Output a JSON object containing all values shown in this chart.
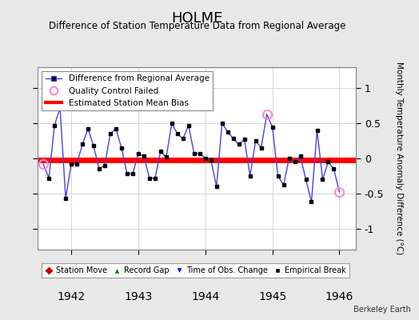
{
  "title": "HOLME",
  "subtitle": "Difference of Station Temperature Data from Regional Average",
  "ylabel": "Monthly Temperature Anomaly Difference (°C)",
  "xlim": [
    1941.5,
    1946.25
  ],
  "ylim": [
    -1.3,
    1.3
  ],
  "yticks": [
    -1,
    -0.5,
    0,
    0.5,
    1
  ],
  "background_color": "#e8e8e8",
  "plot_bg_color": "#ffffff",
  "grid_color": "#d0d0d0",
  "bias_line_y": -0.02,
  "line_color": "#4444dd",
  "line_width": 1.0,
  "marker_color": "#000000",
  "marker_size": 3.5,
  "qc_fail_color": "#ff88cc",
  "bias_color": "#ff0000",
  "bias_lw": 5,
  "watermark": "Berkeley Earth",
  "x_values": [
    1941.583,
    1941.667,
    1941.75,
    1941.833,
    1941.917,
    1942.0,
    1942.083,
    1942.167,
    1942.25,
    1942.333,
    1942.417,
    1942.5,
    1942.583,
    1942.667,
    1942.75,
    1942.833,
    1942.917,
    1943.0,
    1943.083,
    1943.167,
    1943.25,
    1943.333,
    1943.417,
    1943.5,
    1943.583,
    1943.667,
    1943.75,
    1943.833,
    1943.917,
    1944.0,
    1944.083,
    1944.167,
    1944.25,
    1944.333,
    1944.417,
    1944.5,
    1944.583,
    1944.667,
    1944.75,
    1944.833,
    1944.917,
    1945.0,
    1945.083,
    1945.167,
    1945.25,
    1945.333,
    1945.417,
    1945.5,
    1945.583,
    1945.667,
    1945.75,
    1945.833,
    1945.917,
    1946.0
  ],
  "y_values": [
    -0.08,
    -0.28,
    0.47,
    0.72,
    -0.57,
    -0.08,
    -0.08,
    0.2,
    0.42,
    0.18,
    -0.15,
    -0.1,
    0.35,
    0.42,
    0.15,
    -0.22,
    -0.22,
    0.07,
    0.03,
    -0.28,
    -0.28,
    0.1,
    0.02,
    0.5,
    0.35,
    0.28,
    0.47,
    0.07,
    0.07,
    0.0,
    -0.02,
    -0.4,
    0.5,
    0.38,
    0.28,
    0.2,
    0.27,
    -0.25,
    0.25,
    0.15,
    0.63,
    0.45,
    -0.25,
    -0.38,
    0.0,
    -0.05,
    0.03,
    -0.3,
    -0.62,
    0.4,
    -0.3,
    -0.05,
    -0.15,
    -0.48
  ],
  "qc_fail_indices": [
    0,
    40,
    53
  ],
  "xticks": [
    1942,
    1943,
    1944,
    1945,
    1946
  ],
  "xtick_labels": [
    "1942",
    "1943",
    "1944",
    "1945",
    "1946"
  ]
}
